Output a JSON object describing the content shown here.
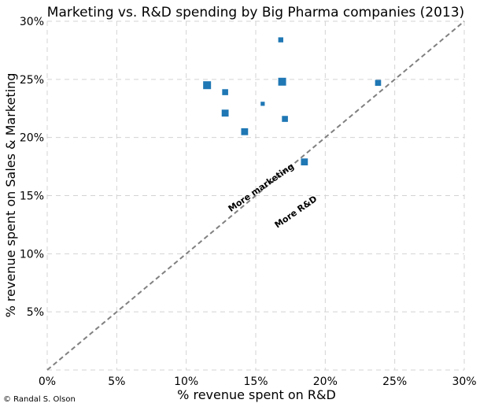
{
  "chart_data": {
    "type": "scatter",
    "title": "Marketing vs. R&D spending by Big Pharma companies (2013)",
    "xlabel": "% revenue spent on R&D",
    "ylabel": "% revenue spent on Sales & Marketing",
    "xlim": [
      0,
      30
    ],
    "ylim": [
      0,
      30
    ],
    "xticks": [
      0,
      5,
      10,
      15,
      20,
      25,
      30
    ],
    "yticks": [
      5,
      10,
      15,
      20,
      25,
      30
    ],
    "xtick_labels": [
      "0%",
      "5%",
      "10%",
      "15%",
      "20%",
      "25%",
      "30%"
    ],
    "ytick_labels": [
      "5%",
      "10%",
      "15%",
      "20%",
      "25%",
      "30%"
    ],
    "grid": true,
    "reference_line": {
      "from": [
        0,
        0
      ],
      "to": [
        30,
        30
      ],
      "style": "dashed",
      "color": "#808080"
    },
    "point_color": "#1f77b4",
    "points": [
      {
        "x": 16.8,
        "y": 28.4,
        "size": 2
      },
      {
        "x": 11.5,
        "y": 24.5,
        "size": 5
      },
      {
        "x": 16.9,
        "y": 24.8,
        "size": 5
      },
      {
        "x": 12.8,
        "y": 23.9,
        "size": 3
      },
      {
        "x": 23.8,
        "y": 24.7,
        "size": 3
      },
      {
        "x": 15.5,
        "y": 22.9,
        "size": 1
      },
      {
        "x": 12.8,
        "y": 22.1,
        "size": 4
      },
      {
        "x": 17.1,
        "y": 21.6,
        "size": 3
      },
      {
        "x": 14.2,
        "y": 20.5,
        "size": 4
      },
      {
        "x": 18.5,
        "y": 17.9,
        "size": 4
      }
    ],
    "annotations": [
      {
        "text": "More marketing",
        "x": 15.5,
        "y": 15.5,
        "rotation": -35
      },
      {
        "text": "More R&D",
        "x": 18.0,
        "y": 13.4,
        "rotation": -35
      }
    ]
  },
  "credit": "© Randal S. Olson"
}
